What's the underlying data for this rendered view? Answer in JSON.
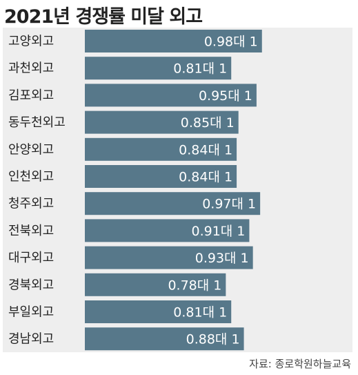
{
  "chart_data": {
    "type": "bar",
    "orientation": "horizontal",
    "title": "2021년 경쟁률 미달 외고",
    "categories": [
      "고양외고",
      "과천외고",
      "김포외고",
      "동두천외고",
      "안양외고",
      "인천외고",
      "청주외고",
      "전북외고",
      "대구외고",
      "경북외고",
      "부일외고",
      "경남외고"
    ],
    "values": [
      0.98,
      0.81,
      0.95,
      0.85,
      0.84,
      0.84,
      0.97,
      0.91,
      0.93,
      0.78,
      0.81,
      0.88
    ],
    "value_labels": [
      "0.98대 1",
      "0.81대 1",
      "0.95대 1",
      "0.85대 1",
      "0.84대 1",
      "0.84대 1",
      "0.97대 1",
      "0.91대 1",
      "0.93대 1",
      "0.78대 1",
      "0.81대 1",
      "0.88대 1"
    ],
    "source": "자료: 종로학원하늘교육",
    "grid": false,
    "legend": "none",
    "colors": {
      "bar": "#57788a",
      "label": "#ffffff",
      "panel": "#eeeeee",
      "category_text": "#222222"
    }
  }
}
